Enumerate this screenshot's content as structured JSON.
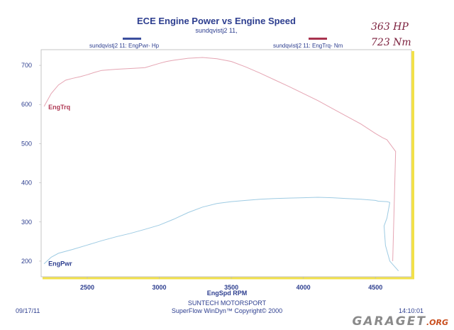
{
  "chart_data": {
    "type": "line",
    "title": "ECE Engine Power vs Engine Speed",
    "subtitle": "sundqvistj2 11,",
    "xlabel": "EngSpd  RPM",
    "xlim": [
      2180,
      4750
    ],
    "ylim": [
      160,
      740
    ],
    "x_ticks": [
      2500,
      3000,
      3500,
      4000,
      4500
    ],
    "y_ticks": [
      200,
      300,
      400,
      500,
      600,
      700
    ],
    "grid": false,
    "legend": [
      {
        "label": "sundqvistj2 11: EngPwr-  Hp",
        "color": "#3c4f9e",
        "placement": "top-left"
      },
      {
        "label": "sundqvistj2 11: EngTrq-  Nm",
        "color": "#a8334f",
        "placement": "top-right"
      }
    ],
    "series": [
      {
        "name": "EngPwr",
        "color": "#9ecbe3",
        "x": [
          2200,
          2250,
          2300,
          2400,
          2500,
          2600,
          2700,
          2800,
          2900,
          3000,
          3100,
          3200,
          3300,
          3400,
          3500,
          3600,
          3700,
          3800,
          3900,
          4000,
          4100,
          4200,
          4300,
          4400,
          4500,
          4520,
          4580,
          4600,
          4580,
          4560,
          4570,
          4600,
          4660
        ],
        "y": [
          193,
          210,
          220,
          230,
          241,
          252,
          262,
          271,
          281,
          292,
          307,
          324,
          338,
          347,
          352,
          355,
          358,
          360,
          361,
          362,
          363,
          362,
          360,
          358,
          355,
          353,
          352,
          350,
          310,
          290,
          240,
          200,
          175
        ]
      },
      {
        "name": "EngTrq",
        "color": "#e5a5b3",
        "x": [
          2200,
          2250,
          2300,
          2350,
          2400,
          2450,
          2500,
          2550,
          2600,
          2700,
          2800,
          2900,
          3000,
          3050,
          3100,
          3200,
          3300,
          3400,
          3500,
          3600,
          3700,
          3800,
          3900,
          4000,
          4100,
          4200,
          4300,
          4400,
          4500,
          4550,
          4580,
          4640,
          4620
        ],
        "y": [
          595,
          628,
          650,
          662,
          667,
          671,
          676,
          682,
          687,
          690,
          692,
          694,
          705,
          710,
          713,
          718,
          720,
          717,
          710,
          696,
          680,
          663,
          646,
          628,
          610,
          590,
          570,
          550,
          526,
          515,
          510,
          480,
          200
        ]
      }
    ],
    "series_labels": [
      {
        "text": "EngTrq",
        "x": 2230,
        "y": 588,
        "color": "#b03a55"
      },
      {
        "text": "EngPwr",
        "x": 2230,
        "y": 188,
        "color": "#2d3e8f"
      }
    ]
  },
  "annotations": {
    "power_hand": "363 HP",
    "torque_hand": "723 Nm"
  },
  "footer": {
    "date": "09/17/11",
    "time": "14:10:01",
    "company": "SUNTECH MOTORSPORT",
    "software": "SuperFlow WinDyn™  Copyright© 2000"
  },
  "watermark": {
    "text": "GARAGET",
    "suffix": ".ORG"
  }
}
